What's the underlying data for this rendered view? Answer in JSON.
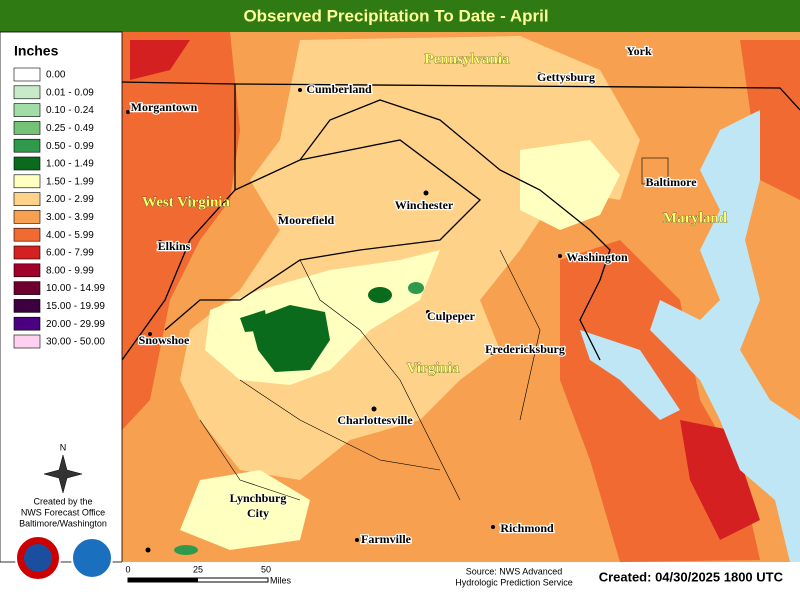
{
  "header": {
    "title": "Observed Precipitation To Date - April"
  },
  "legend": {
    "title": "Inches",
    "items": [
      {
        "label": "0.00",
        "color": "#ffffff"
      },
      {
        "label": "0.01 - 0.09",
        "color": "#c8eac8"
      },
      {
        "label": "0.10 - 0.24",
        "color": "#a2dca6"
      },
      {
        "label": "0.25 - 0.49",
        "color": "#74c276"
      },
      {
        "label": "0.50 - 0.99",
        "color": "#2f9a4c"
      },
      {
        "label": "1.00 - 1.49",
        "color": "#0b6b1d"
      },
      {
        "label": "1.50 - 1.99",
        "color": "#ffffc0"
      },
      {
        "label": "2.00 - 2.99",
        "color": "#ffd28a"
      },
      {
        "label": "3.00 - 3.99",
        "color": "#f6a050"
      },
      {
        "label": "4.00 - 5.99",
        "color": "#f06a32"
      },
      {
        "label": "6.00 - 7.99",
        "color": "#d42020"
      },
      {
        "label": "8.00 - 9.99",
        "color": "#a0002a"
      },
      {
        "label": "10.00 - 14.99",
        "color": "#6e0030"
      },
      {
        "label": "15.00 - 19.99",
        "color": "#3c0040"
      },
      {
        "label": "20.00 - 29.99",
        "color": "#4b0082"
      },
      {
        "label": "30.00 - 50.00",
        "color": "#ffd0f0"
      }
    ]
  },
  "map": {
    "states": [
      "Pennsylvania",
      "West Virginia",
      "Maryland",
      "Virginia"
    ],
    "places": [
      "Gettysburg",
      "York",
      "Cumberland",
      "Morgantown",
      "Moorefield",
      "Winchester",
      "Baltimore",
      "Elkins",
      "Washington",
      "Culpeper",
      "Snowshoe",
      "Fredericksburg",
      "Charlottesville",
      "Lynchburg City",
      "Richmond",
      "Farmville"
    ]
  },
  "compass": "N",
  "credit": [
    "Created by the",
    "NWS Forecast Office",
    "Baltimore/Washington"
  ],
  "scale": {
    "labels": [
      "0",
      "25",
      "50"
    ],
    "unit": "Miles"
  },
  "source": [
    "Source: NWS Advanced",
    "Hydrologic Prediction Service"
  ],
  "created": "Created: 04/30/2025 1800 UTC"
}
